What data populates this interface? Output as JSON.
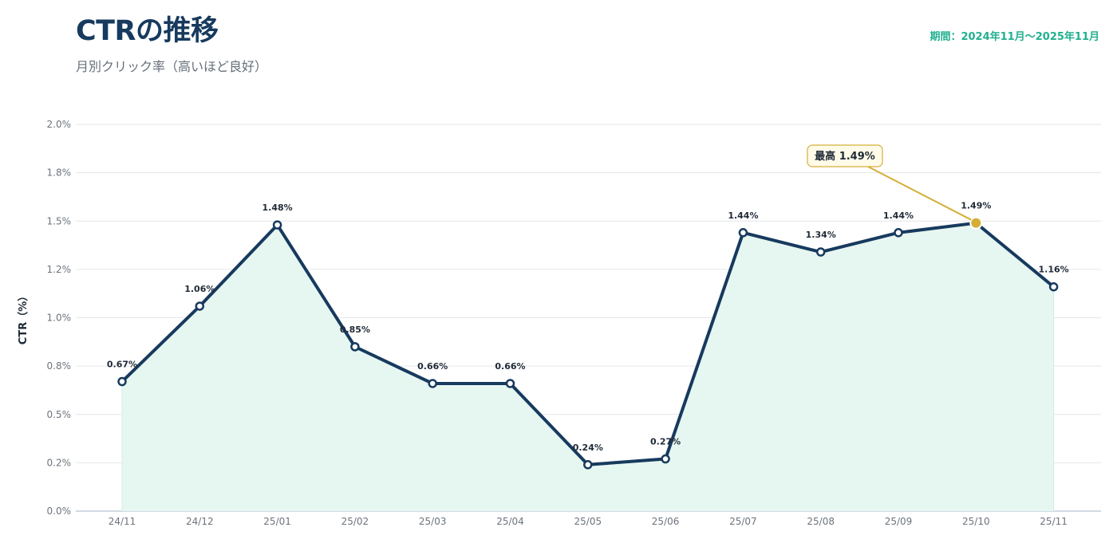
{
  "header": {
    "title": "CTRの推移",
    "subtitle": "月別クリック率（高いほど良好）",
    "period": "期間：2024年11月〜2025年11月"
  },
  "chart_data": {
    "type": "area",
    "ylabel": "CTR（%）",
    "categories": [
      "24/11",
      "24/12",
      "25/01",
      "25/02",
      "25/03",
      "25/04",
      "25/05",
      "25/06",
      "25/07",
      "25/08",
      "25/09",
      "25/10",
      "25/11"
    ],
    "series": [
      {
        "values": [
          0.67,
          1.06,
          1.48,
          0.85,
          0.66,
          0.66,
          0.24,
          0.27,
          1.44,
          1.34,
          1.44,
          1.49,
          1.16
        ],
        "data_labels": [
          "0.67%",
          "1.06%",
          "1.48%",
          "0.85%",
          "0.66%",
          "0.66%",
          "0.24%",
          "0.27%",
          "1.44%",
          "1.34%",
          "1.44%",
          "1.49%",
          "1.16%"
        ]
      }
    ],
    "ylim": [
      0,
      2.0
    ],
    "yticks": [
      "0.0%",
      "0.2%",
      "0.5%",
      "0.8%",
      "1.0%",
      "1.2%",
      "1.5%",
      "1.8%",
      "2.0%"
    ],
    "grid": true,
    "annotation": {
      "category": "25/10",
      "label": "最高",
      "value_label": "1.49%"
    },
    "colors": {
      "line": "#173a5e",
      "fill": "#e6f6f1",
      "highlight": "#d4af37",
      "grid": "#e3e6ea",
      "accent": "#22b08f"
    }
  }
}
